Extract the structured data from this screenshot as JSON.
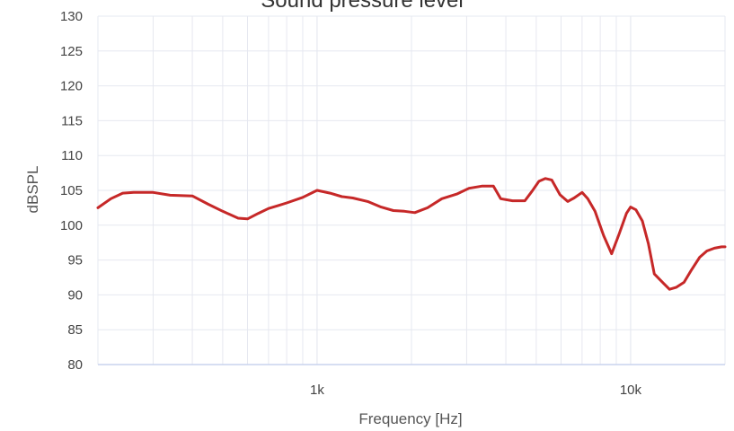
{
  "chart_data": {
    "type": "line",
    "title": "Sound pressure level",
    "xlabel": "Frequency [Hz]",
    "ylabel": "dBSPL",
    "x_scale": "log",
    "xlim": [
      200,
      20000
    ],
    "ylim": [
      80,
      130
    ],
    "x_tick_labels": [
      {
        "value": 1000,
        "label": "1k"
      },
      {
        "value": 10000,
        "label": "10k"
      }
    ],
    "y_ticks": [
      80,
      85,
      90,
      95,
      100,
      105,
      110,
      115,
      120,
      125,
      130
    ],
    "grid": true,
    "legend": "none",
    "colors": {
      "line": "#c62828",
      "grid": "#e6e8f0",
      "baseline": "#c9d3ee"
    },
    "series": [
      {
        "x": [
          200,
          220,
          240,
          260,
          300,
          340,
          400,
          450,
          500,
          560,
          600,
          650,
          700,
          750,
          800,
          900,
          1000,
          1100,
          1200,
          1300,
          1450,
          1600,
          1750,
          1900,
          2050,
          2250,
          2500,
          2800,
          3050,
          3350,
          3650,
          3850,
          4200,
          4600,
          4850,
          5100,
          5350,
          5600,
          5950,
          6300,
          6600,
          7000,
          7300,
          7700,
          8200,
          8700,
          9200,
          9700,
          10000,
          10400,
          10900,
          11400,
          11900,
          12700,
          13300,
          14000,
          14800,
          15600,
          16600,
          17500,
          18500,
          19500,
          20000
        ],
        "y": [
          102.5,
          103.8,
          104.6,
          104.7,
          104.7,
          104.3,
          104.2,
          103.0,
          102.0,
          101.0,
          100.9,
          101.7,
          102.4,
          102.8,
          103.2,
          104.0,
          105.0,
          104.6,
          104.1,
          103.9,
          103.4,
          102.6,
          102.1,
          102.0,
          101.8,
          102.5,
          103.8,
          104.5,
          105.3,
          105.6,
          105.6,
          103.8,
          103.5,
          103.5,
          104.9,
          106.3,
          106.7,
          106.5,
          104.4,
          103.4,
          103.9,
          104.7,
          103.8,
          102.0,
          98.5,
          95.9,
          98.8,
          101.7,
          102.6,
          102.2,
          100.6,
          97.3,
          93.0,
          91.7,
          90.8,
          91.1,
          91.8,
          93.5,
          95.4,
          96.3,
          96.7,
          96.9,
          96.9
        ]
      }
    ]
  }
}
